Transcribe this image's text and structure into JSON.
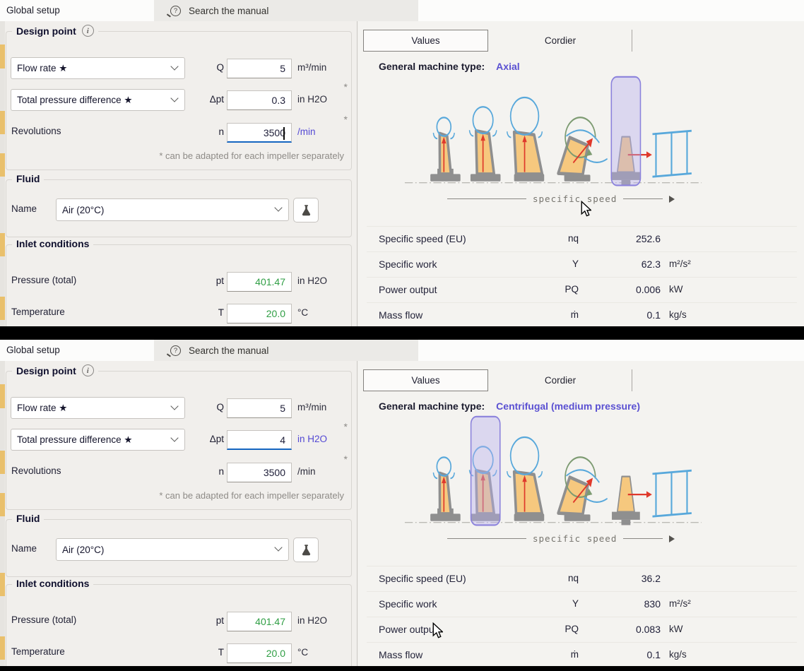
{
  "colors": {
    "focus_blue": "#1565c0",
    "value_green": "#2f9e44",
    "unit_highlight": "#5348d4",
    "machine_type_text": "#5a50d2",
    "highlight_box_fill": "#b7b1ee",
    "highlight_box_border": "#8b82dc",
    "blade_orange": "#f6c87e",
    "impeller_gray": "#8f8f8f",
    "volute_blue": "#58a8db",
    "arrow_red": "#df392b",
    "loop_green": "#7d9b72"
  },
  "panels": [
    {
      "tab_title": "Global setup",
      "search_label": "Search the manual",
      "design_point": {
        "title": "Design point",
        "flow": {
          "option": "Flow rate ★",
          "symbol": "Q",
          "value": "5",
          "unit": "m³/min",
          "focused": false,
          "caret": false
        },
        "pressure": {
          "option": "Total pressure difference ★",
          "symbol": "Δpt",
          "value": "0.3",
          "unit": "in H2O",
          "star": "*",
          "focused": false,
          "caret": false
        },
        "revolutions": {
          "label": "Revolutions",
          "symbol": "n",
          "value": "3500",
          "unit": "/min",
          "star": "*",
          "focused": true,
          "caret": true
        },
        "footnote": "* can be adapted for each impeller separately"
      },
      "fluid": {
        "title": "Fluid",
        "name_label": "Name",
        "name_value": "Air (20°C)"
      },
      "inlet": {
        "title": "Inlet conditions",
        "pressure": {
          "label": "Pressure (total)",
          "symbol": "pt",
          "value": "401.47",
          "unit": "in H2O"
        },
        "temperature": {
          "label": "Temperature",
          "symbol": "T",
          "value": "20.0",
          "unit": "°C"
        }
      },
      "results": {
        "tab_values": "Values",
        "tab_cordier": "Cordier",
        "machine_type_label": "General machine type:",
        "machine_type_value": "Axial",
        "diagram_caption": "specific speed",
        "highlight_index": 4,
        "rows": [
          {
            "label": "Specific speed (EU)",
            "symbol": "nq",
            "value": "252.6",
            "unit": ""
          },
          {
            "label": "Specific work",
            "symbol": "Y",
            "value": "62.3",
            "unit": "m²/s²"
          },
          {
            "label": "Power output",
            "symbol": "PQ",
            "value": "0.006",
            "unit": "kW"
          },
          {
            "label": "Mass flow",
            "symbol": "ṁ",
            "value": "0.1",
            "unit": "kg/s"
          }
        ]
      }
    },
    {
      "tab_title": "Global setup",
      "search_label": "Search the manual",
      "design_point": {
        "title": "Design point",
        "flow": {
          "option": "Flow rate ★",
          "symbol": "Q",
          "value": "5",
          "unit": "m³/min",
          "focused": false,
          "caret": false
        },
        "pressure": {
          "option": "Total pressure difference ★",
          "symbol": "Δpt",
          "value": "4",
          "unit": "in H2O",
          "star": "*",
          "focused": true,
          "caret": false
        },
        "revolutions": {
          "label": "Revolutions",
          "symbol": "n",
          "value": "3500",
          "unit": "/min",
          "star": "*",
          "focused": false,
          "caret": false
        },
        "footnote": "* can be adapted for each impeller separately"
      },
      "fluid": {
        "title": "Fluid",
        "name_label": "Name",
        "name_value": "Air (20°C)"
      },
      "inlet": {
        "title": "Inlet conditions",
        "pressure": {
          "label": "Pressure (total)",
          "symbol": "pt",
          "value": "401.47",
          "unit": "in H2O"
        },
        "temperature": {
          "label": "Temperature",
          "symbol": "T",
          "value": "20.0",
          "unit": "°C"
        }
      },
      "results": {
        "tab_values": "Values",
        "tab_cordier": "Cordier",
        "machine_type_label": "General machine type:",
        "machine_type_value": "Centrifugal (medium pressure)",
        "diagram_caption": "specific speed",
        "highlight_index": 1,
        "rows": [
          {
            "label": "Specific speed (EU)",
            "symbol": "nq",
            "value": "36.2",
            "unit": ""
          },
          {
            "label": "Specific work",
            "symbol": "Y",
            "value": "830",
            "unit": "m²/s²"
          },
          {
            "label": "Power output",
            "symbol": "PQ",
            "value": "0.083",
            "unit": "kW"
          },
          {
            "label": "Mass flow",
            "symbol": "ṁ",
            "value": "0.1",
            "unit": "kg/s"
          }
        ]
      }
    }
  ]
}
